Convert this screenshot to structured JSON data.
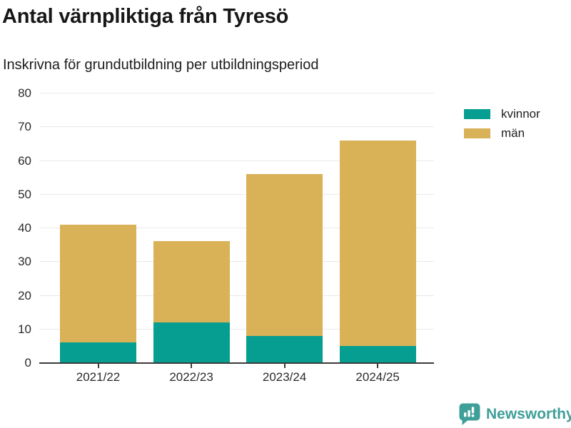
{
  "header": {
    "title": "Antal värnpliktiga från Tyresö",
    "subtitle": "Inskrivna för grundutbildning per utbildningsperiod"
  },
  "chart_data": {
    "type": "bar",
    "stacked": true,
    "title": "Antal värnpliktiga från Tyresö",
    "subtitle": "Inskrivna för grundutbildning per utbildningsperiod",
    "categories": [
      "2021/22",
      "2022/23",
      "2023/24",
      "2024/25"
    ],
    "series": [
      {
        "name": "kvinnor",
        "color": "#069E91",
        "values": [
          6,
          12,
          8,
          5
        ]
      },
      {
        "name": "män",
        "color": "#D9B157",
        "values": [
          35,
          24,
          48,
          61
        ]
      }
    ],
    "stack_totals": [
      41,
      36,
      56,
      66
    ],
    "xlabel": "",
    "ylabel": "",
    "ylim": [
      0,
      80
    ],
    "yticks": [
      0,
      10,
      20,
      30,
      40,
      50,
      60,
      70,
      80
    ],
    "grid": "horizontal",
    "legend_position": "top-right"
  },
  "legend": {
    "items": [
      "kvinnor",
      "män"
    ]
  },
  "branding": {
    "logo_text": "Newsworthy",
    "logo_color": "#3F9F99"
  }
}
